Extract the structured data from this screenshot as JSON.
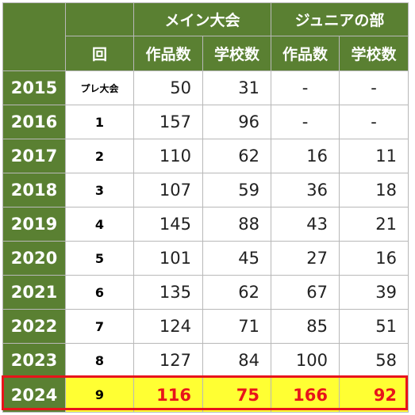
{
  "header": {
    "main_group": "メイン大会",
    "junior_group": "ジュニアの部",
    "round_label": "回",
    "works_label": "作品数",
    "schools_label": "学校数"
  },
  "rows": [
    {
      "year": "2015",
      "round": "プレ大会",
      "main_works": "50",
      "main_schools": "31",
      "jr_works": "-",
      "jr_schools": "-"
    },
    {
      "year": "2016",
      "round": "1",
      "main_works": "157",
      "main_schools": "96",
      "jr_works": "-",
      "jr_schools": "-"
    },
    {
      "year": "2017",
      "round": "2",
      "main_works": "110",
      "main_schools": "62",
      "jr_works": "16",
      "jr_schools": "11"
    },
    {
      "year": "2018",
      "round": "3",
      "main_works": "107",
      "main_schools": "59",
      "jr_works": "36",
      "jr_schools": "18"
    },
    {
      "year": "2019",
      "round": "4",
      "main_works": "145",
      "main_schools": "88",
      "jr_works": "43",
      "jr_schools": "21"
    },
    {
      "year": "2020",
      "round": "5",
      "main_works": "101",
      "main_schools": "45",
      "jr_works": "27",
      "jr_schools": "16"
    },
    {
      "year": "2021",
      "round": "6",
      "main_works": "135",
      "main_schools": "62",
      "jr_works": "67",
      "jr_schools": "39"
    },
    {
      "year": "2022",
      "round": "7",
      "main_works": "124",
      "main_schools": "71",
      "jr_works": "85",
      "jr_schools": "51"
    },
    {
      "year": "2023",
      "round": "8",
      "main_works": "127",
      "main_schools": "84",
      "jr_works": "100",
      "jr_schools": "58"
    },
    {
      "year": "2024",
      "round": "9",
      "main_works": "116",
      "main_schools": "75",
      "jr_works": "166",
      "jr_schools": "92"
    }
  ],
  "colors": {
    "header_green": "#5a8032",
    "highlight_yellow": "#ffff33",
    "highlight_red": "#e8141b"
  }
}
